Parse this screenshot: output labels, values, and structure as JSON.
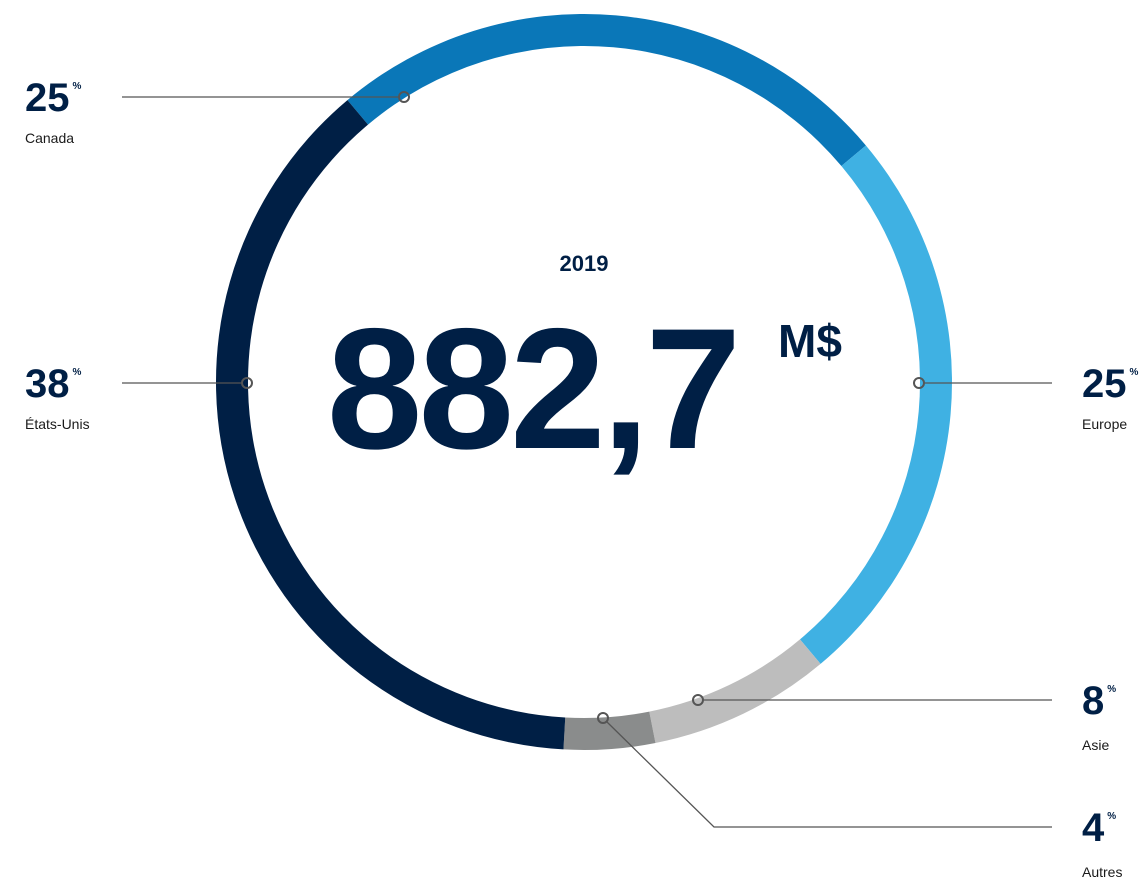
{
  "chart_data": {
    "type": "pie",
    "donut": true,
    "year": "2019",
    "total_label": "882,7",
    "total_unit": "M$",
    "unit": "%",
    "categories": [
      "Canada",
      "Europe",
      "Asie",
      "Autres",
      "États-Unis"
    ],
    "values": [
      25,
      25,
      8,
      4,
      38
    ],
    "colors": [
      "#0a77b8",
      "#3fb1e3",
      "#bdbdbd",
      "#8a8c8c",
      "#001f45"
    ]
  }
}
